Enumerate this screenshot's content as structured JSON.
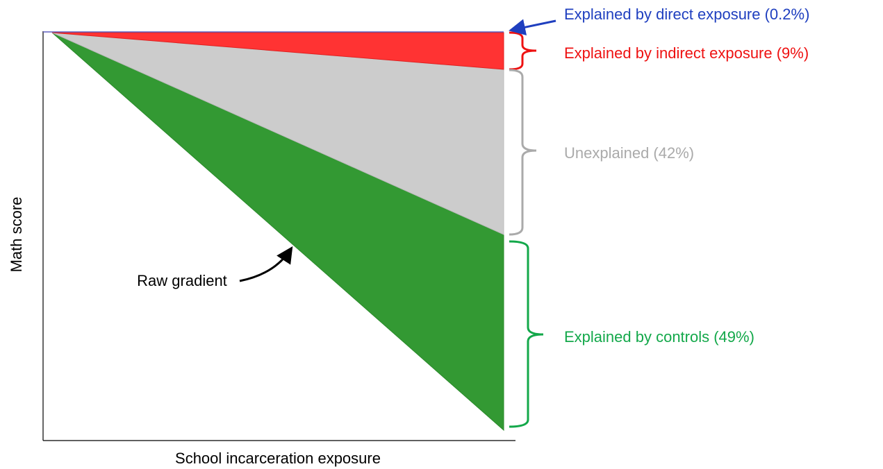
{
  "y_axis_label": "Math score",
  "x_axis_label": "School incarceration exposure",
  "raw_gradient_label": "Raw gradient",
  "components": [
    {
      "label": "Explained by direct exposure (0.2%)"
    },
    {
      "label": "Explained by indirect exposure (9%)"
    },
    {
      "label": "Unexplained (42%)"
    },
    {
      "label": "Explained by controls (49%)"
    }
  ]
}
